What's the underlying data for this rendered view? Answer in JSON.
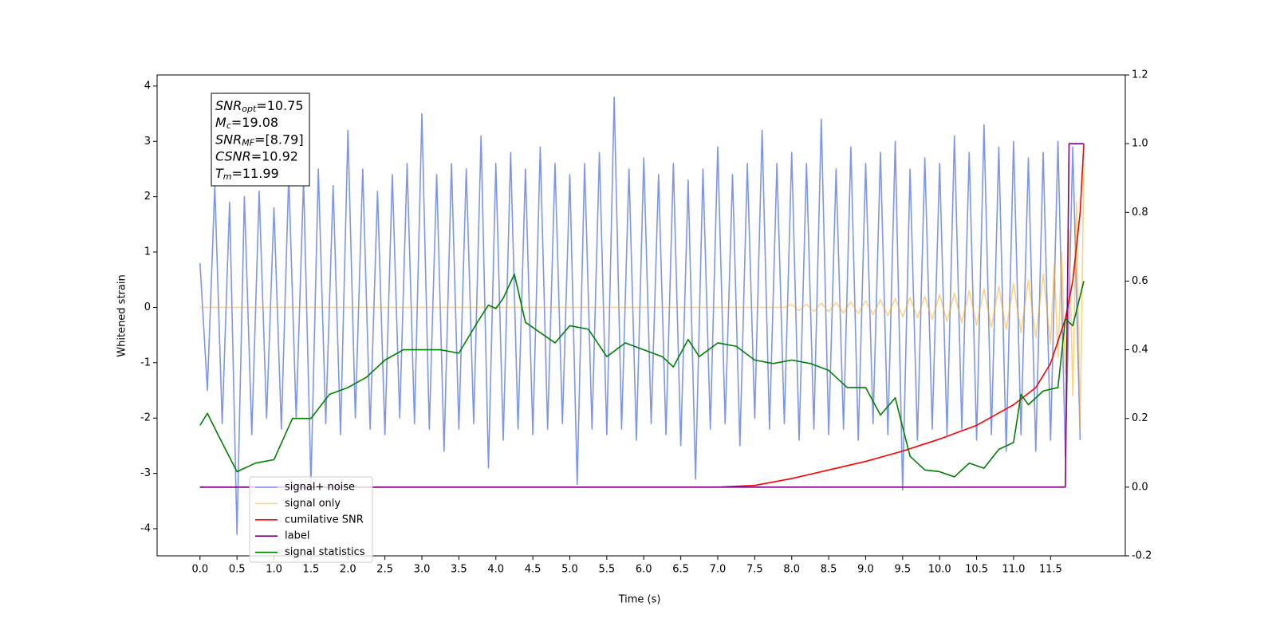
{
  "chart_data": {
    "type": "line",
    "xlabel": "Time (s)",
    "ylabel": "Whitened strain",
    "xlim": [
      -0.58,
      12.51
    ],
    "ylim": [
      -4.49,
      4.2
    ],
    "y2lim": [
      -0.2,
      1.2
    ],
    "xticks": [
      {
        "value": 0,
        "label": "0.0"
      },
      0.5,
      {
        "value": 1,
        "label": "1.0"
      },
      1.5,
      {
        "value": 2,
        "label": "2.0"
      },
      2.5,
      {
        "value": 3,
        "label": "3.0"
      },
      3.5,
      {
        "value": 4,
        "label": "4.0"
      },
      4.5,
      {
        "value": 5,
        "label": "5.0"
      },
      5.5,
      {
        "value": 6,
        "label": "6.0"
      },
      6.5,
      {
        "value": 7,
        "label": "7.0"
      },
      7.5,
      {
        "value": 8,
        "label": "8.0"
      },
      8.5,
      {
        "value": 9,
        "label": "9.0"
      },
      9.5,
      {
        "value": 10,
        "label": "10.0"
      },
      10.5,
      {
        "value": 11,
        "label": "11.0"
      },
      11.5
    ],
    "yticks": [
      -4,
      -3,
      -2,
      -1,
      0,
      1,
      2,
      3,
      4
    ],
    "y2ticks": [
      -0.2,
      {
        "value": 0,
        "label": "0.0"
      },
      0.2,
      0.4,
      0.6,
      0.8,
      {
        "value": 1,
        "label": "1.0"
      },
      1.2
    ],
    "legend": "lower left",
    "annotation": [
      {
        "symbol": "SNR",
        "sub": "opt",
        "text": "=10.75"
      },
      {
        "symbol": "M",
        "sub": "c",
        "text": "=19.08"
      },
      {
        "symbol": "SNR",
        "sub": "MF",
        "text": "=[8.79]"
      },
      {
        "symbol": "CSNR",
        "sub": "",
        "text": "=10.92"
      },
      {
        "symbol": "T",
        "sub": "m",
        "text": "=11.99"
      }
    ],
    "series": [
      {
        "name": "signal+ noise",
        "color": "#6f8be8",
        "alpha": 0.9,
        "x": [
          0.0,
          0.1,
          0.2,
          0.3,
          0.4,
          0.5,
          0.6,
          0.7,
          0.8,
          0.9,
          1.0,
          1.1,
          1.2,
          1.3,
          1.4,
          1.5,
          1.6,
          1.7,
          1.8,
          1.9,
          2.0,
          2.1,
          2.2,
          2.3,
          2.4,
          2.5,
          2.6,
          2.7,
          2.8,
          2.9,
          3.0,
          3.1,
          3.2,
          3.3,
          3.4,
          3.5,
          3.6,
          3.7,
          3.8,
          3.9,
          4.0,
          4.1,
          4.2,
          4.3,
          4.4,
          4.5,
          4.6,
          4.7,
          4.8,
          4.9,
          5.0,
          5.1,
          5.2,
          5.3,
          5.4,
          5.5,
          5.6,
          5.7,
          5.8,
          5.9,
          6.0,
          6.1,
          6.2,
          6.3,
          6.4,
          6.5,
          6.6,
          6.7,
          6.8,
          6.9,
          7.0,
          7.1,
          7.2,
          7.3,
          7.4,
          7.5,
          7.6,
          7.7,
          7.8,
          7.9,
          8.0,
          8.1,
          8.2,
          8.3,
          8.4,
          8.5,
          8.6,
          8.7,
          8.8,
          8.9,
          9.0,
          9.1,
          9.2,
          9.3,
          9.4,
          9.5,
          9.6,
          9.7,
          9.8,
          9.9,
          10.0,
          10.1,
          10.2,
          10.3,
          10.4,
          10.5,
          10.6,
          10.7,
          10.8,
          10.9,
          11.0,
          11.1,
          11.2,
          11.3,
          11.4,
          11.5,
          11.6,
          11.7,
          11.8,
          11.9
        ],
        "values": [
          0.8,
          -1.5,
          2.2,
          -2.1,
          1.9,
          -4.1,
          2.0,
          -2.3,
          2.1,
          -2.0,
          1.8,
          -2.2,
          2.4,
          -2.0,
          2.3,
          -3.2,
          2.5,
          -2.1,
          2.2,
          -2.3,
          3.2,
          -2.0,
          2.5,
          -2.2,
          2.1,
          -2.3,
          2.4,
          -2.0,
          2.6,
          -2.1,
          3.5,
          -2.2,
          2.4,
          -2.6,
          2.6,
          -2.2,
          2.5,
          -2.1,
          3.1,
          -2.9,
          2.6,
          -2.4,
          2.8,
          -2.2,
          2.5,
          -2.3,
          2.9,
          -2.2,
          2.6,
          -2.1,
          2.4,
          -3.2,
          2.6,
          -2.2,
          2.8,
          -2.3,
          3.8,
          -2.2,
          2.5,
          -2.4,
          2.7,
          -2.1,
          2.4,
          -2.3,
          2.6,
          -2.5,
          2.3,
          -3.1,
          2.5,
          -2.2,
          2.9,
          -2.1,
          2.4,
          -2.5,
          2.6,
          -2.0,
          3.2,
          -2.2,
          2.6,
          -2.1,
          2.8,
          -2.4,
          2.6,
          -2.2,
          3.4,
          -2.3,
          2.5,
          -2.2,
          2.9,
          -2.4,
          2.6,
          -2.1,
          2.8,
          -2.3,
          3.0,
          -3.3,
          2.5,
          -2.4,
          2.7,
          -2.2,
          2.6,
          -2.3,
          3.1,
          -2.2,
          2.8,
          -2.4,
          3.3,
          -2.3,
          2.9,
          -2.6,
          3.0,
          -2.3,
          2.7,
          -2.6,
          2.8,
          -2.4,
          3.0,
          -2.7,
          2.9,
          -2.4
        ]
      },
      {
        "name": "signal only",
        "color": "#ffa500",
        "alpha": 0.5,
        "x": [
          0,
          7.9,
          8.0,
          8.1,
          8.2,
          8.3,
          8.4,
          8.5,
          8.6,
          8.7,
          8.8,
          8.9,
          9.0,
          9.1,
          9.2,
          9.3,
          9.4,
          9.5,
          9.6,
          9.7,
          9.8,
          9.9,
          10.0,
          10.1,
          10.2,
          10.3,
          10.4,
          10.5,
          10.6,
          10.7,
          10.8,
          10.9,
          11.0,
          11.1,
          11.2,
          11.3,
          11.4,
          11.5,
          11.55,
          11.6,
          11.65,
          11.7,
          11.75,
          11.8,
          11.85,
          11.9,
          11.95
        ],
        "values": [
          0,
          0,
          0.05,
          -0.06,
          0.06,
          -0.07,
          0.08,
          -0.08,
          0.09,
          -0.1,
          0.1,
          -0.11,
          0.12,
          -0.13,
          0.14,
          -0.15,
          0.16,
          -0.17,
          0.18,
          -0.19,
          0.2,
          -0.22,
          0.23,
          -0.25,
          0.26,
          -0.28,
          0.3,
          -0.32,
          0.34,
          -0.36,
          0.38,
          -0.4,
          0.43,
          -0.46,
          0.5,
          -0.54,
          0.6,
          -0.66,
          0.8,
          -0.9,
          1.0,
          -1.2,
          1.4,
          -1.6,
          1.9,
          -2.2,
          2.6
        ]
      },
      {
        "name": "cumilative SNR",
        "color": "#ff0000",
        "axis": "y2",
        "x": [
          0,
          7.0,
          7.5,
          8.0,
          8.5,
          9.0,
          9.5,
          10.0,
          10.5,
          11.0,
          11.3,
          11.5,
          11.7,
          11.8,
          11.9,
          11.95
        ],
        "values": [
          0,
          0,
          0.005,
          0.025,
          0.05,
          0.075,
          0.105,
          0.14,
          0.18,
          0.24,
          0.29,
          0.36,
          0.49,
          0.6,
          0.8,
          1.0
        ]
      },
      {
        "name": "label",
        "color": "#800080",
        "axis": "y2",
        "x": [
          0,
          11.7,
          11.75,
          11.95
        ],
        "values": [
          0,
          0,
          1,
          1
        ]
      },
      {
        "name": "signal statistics",
        "color": "#008000",
        "axis": "y2",
        "x": [
          0.0,
          0.1,
          0.25,
          0.5,
          0.75,
          1.0,
          1.25,
          1.5,
          1.75,
          2.0,
          2.25,
          2.5,
          2.75,
          3.0,
          3.25,
          3.5,
          3.75,
          3.9,
          4.0,
          4.1,
          4.25,
          4.4,
          4.6,
          4.8,
          5.0,
          5.25,
          5.5,
          5.75,
          6.0,
          6.25,
          6.4,
          6.6,
          6.75,
          7.0,
          7.25,
          7.5,
          7.75,
          8.0,
          8.25,
          8.5,
          8.75,
          9.0,
          9.2,
          9.4,
          9.6,
          9.8,
          10.0,
          10.2,
          10.4,
          10.6,
          10.8,
          11.0,
          11.1,
          11.2,
          11.4,
          11.6,
          11.7,
          11.8,
          11.95
        ],
        "values": [
          0.18,
          0.215,
          0.15,
          0.045,
          0.07,
          0.08,
          0.2,
          0.2,
          0.27,
          0.29,
          0.32,
          0.37,
          0.4,
          0.4,
          0.4,
          0.39,
          0.48,
          0.53,
          0.52,
          0.55,
          0.62,
          0.48,
          0.45,
          0.42,
          0.47,
          0.46,
          0.38,
          0.42,
          0.4,
          0.38,
          0.35,
          0.43,
          0.38,
          0.42,
          0.41,
          0.37,
          0.36,
          0.37,
          0.36,
          0.34,
          0.29,
          0.29,
          0.21,
          0.26,
          0.09,
          0.05,
          0.045,
          0.03,
          0.07,
          0.055,
          0.11,
          0.13,
          0.27,
          0.24,
          0.28,
          0.29,
          0.49,
          0.47,
          0.6
        ]
      }
    ]
  }
}
